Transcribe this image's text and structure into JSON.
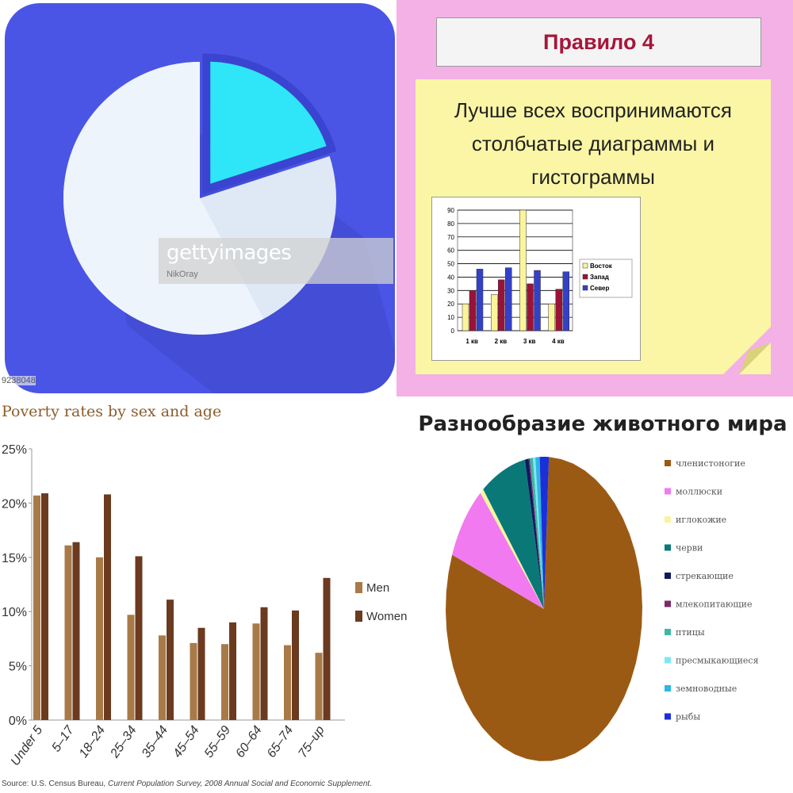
{
  "getty": {
    "brand": "gettyimages",
    "credit": "NikOray",
    "stock_id": "9238048"
  },
  "slide": {
    "rule_title": "Правило 4",
    "body_lines": [
      "Лучше всех воспринимаются",
      "столбчатые диаграммы и",
      "гистограммы"
    ]
  },
  "colors": {
    "icon_bg": "#4a55e6",
    "pie_main": "#dfe9f6",
    "pie_light": "#eef4fb",
    "slice": "#2ee6f8",
    "slide_bg": "#f3b1e6",
    "note_bg": "#fbf6a5",
    "title_red": "#a5173b",
    "men": "#a87a47",
    "women": "#6b3a1f"
  },
  "chart_data": [
    {
      "type": "pie",
      "title": "",
      "values": [
        80,
        20
      ],
      "note": "pie icon with one exploded slice"
    },
    {
      "type": "bar",
      "title": "",
      "categories": [
        "1 кв",
        "2 кв",
        "3 кв",
        "4 кв"
      ],
      "ylim": [
        0,
        90
      ],
      "yticks": [
        0,
        10,
        20,
        30,
        40,
        50,
        60,
        70,
        80,
        90
      ],
      "series": [
        {
          "name": "Восток",
          "color": "#fbf59a",
          "values": [
            20,
            27,
            90,
            20
          ]
        },
        {
          "name": "Запад",
          "color": "#9b1238",
          "values": [
            30,
            38,
            35,
            31
          ]
        },
        {
          "name": "Север",
          "color": "#3540c8",
          "values": [
            46,
            47,
            45,
            44
          ]
        }
      ],
      "legend": "right"
    },
    {
      "type": "bar",
      "title": "Poverty rates by sex and age",
      "categories": [
        "Under 5",
        "5–17",
        "18–24",
        "25–34",
        "35–44",
        "45–54",
        "55–59",
        "60–64",
        "65–74",
        "75–up"
      ],
      "ylim": [
        0,
        25
      ],
      "yticks": [
        "0%",
        "5%",
        "10%",
        "15%",
        "20%",
        "25%"
      ],
      "series": [
        {
          "name": "Men",
          "values": [
            20.7,
            16.1,
            15.0,
            9.7,
            7.8,
            7.1,
            7.0,
            8.9,
            6.9,
            6.2
          ]
        },
        {
          "name": "Women",
          "values": [
            20.9,
            16.4,
            20.8,
            15.1,
            11.1,
            8.5,
            9.0,
            10.4,
            10.1,
            13.1
          ]
        }
      ],
      "legend": "right",
      "source": {
        "prefix": "Source: U.S. Census Bureau, ",
        "italic": "Current Population Survey, 2008 Annual Social and Economic Supplement",
        "suffix": "."
      }
    },
    {
      "type": "pie",
      "title": "Разнообразие животного мира",
      "series": [
        {
          "name": "членистоногие",
          "color": "#9b5a14",
          "value": 80.0
        },
        {
          "name": "моллюски",
          "color": "#f27af0",
          "value": 8.0
        },
        {
          "name": "иглокожие",
          "color": "#f8f4a0",
          "value": 0.6
        },
        {
          "name": "черви",
          "color": "#0b7878",
          "value": 7.5
        },
        {
          "name": "стрекающие",
          "color": "#0d1a5e",
          "value": 0.6
        },
        {
          "name": "млекопитающие",
          "color": "#7a2a6e",
          "value": 0.2
        },
        {
          "name": "птицы",
          "color": "#3fb7a3",
          "value": 0.5
        },
        {
          "name": "пресмыкающиеся",
          "color": "#7de8f0",
          "value": 0.4
        },
        {
          "name": "земноводные",
          "color": "#2fb6e2",
          "value": 0.7
        },
        {
          "name": "рыбы",
          "color": "#1b2fd8",
          "value": 1.5
        }
      ],
      "legend": "right"
    }
  ]
}
